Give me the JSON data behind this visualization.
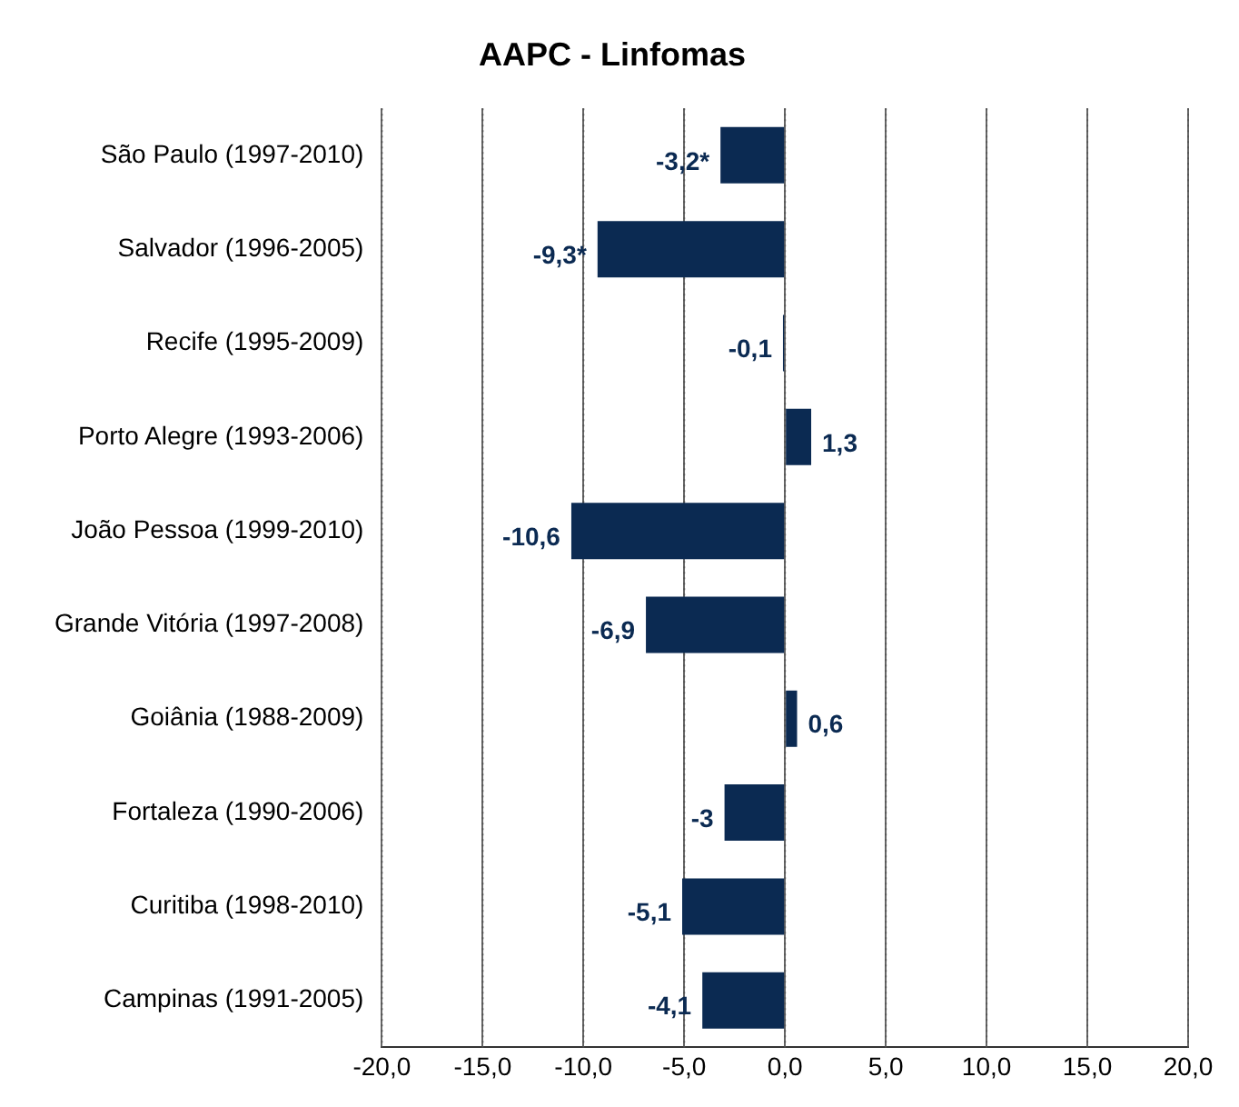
{
  "chart_data": {
    "type": "bar",
    "orientation": "horizontal",
    "title": "AAPC - Linfomas",
    "categories": [
      "São Paulo (1997-2010)",
      "Salvador (1996-2005)",
      "Recife (1995-2009)",
      "Porto Alegre (1993-2006)",
      "João Pessoa (1999-2010)",
      "Grande Vitória (1997-2008)",
      "Goiânia (1988-2009)",
      "Fortaleza (1990-2006)",
      "Curitiba (1998-2010)",
      "Campinas (1991-2005)"
    ],
    "values": [
      -3.2,
      -9.3,
      -0.1,
      1.3,
      -10.6,
      -6.9,
      0.6,
      -3,
      -5.1,
      -4.1
    ],
    "value_labels": [
      "-3,2*",
      "-9,3*",
      "-0,1",
      "1,3",
      "-10,6",
      "-6,9",
      "0,6",
      "-3",
      "-5,1",
      "-4,1"
    ],
    "color": "#0b2a52",
    "xlim": [
      -20,
      20
    ],
    "xticks": [
      {
        "value": -20,
        "label": "-20,0"
      },
      {
        "value": -15,
        "label": "-15,0"
      },
      {
        "value": -10,
        "label": "-10,0"
      },
      {
        "value": -5,
        "label": "-5,0"
      },
      {
        "value": 0,
        "label": "0,0"
      },
      {
        "value": 5,
        "label": "5,0"
      },
      {
        "value": 10,
        "label": "10,0"
      },
      {
        "value": 15,
        "label": "15,0"
      },
      {
        "value": 20,
        "label": "20,0"
      }
    ],
    "grid": "x",
    "legend": false
  }
}
